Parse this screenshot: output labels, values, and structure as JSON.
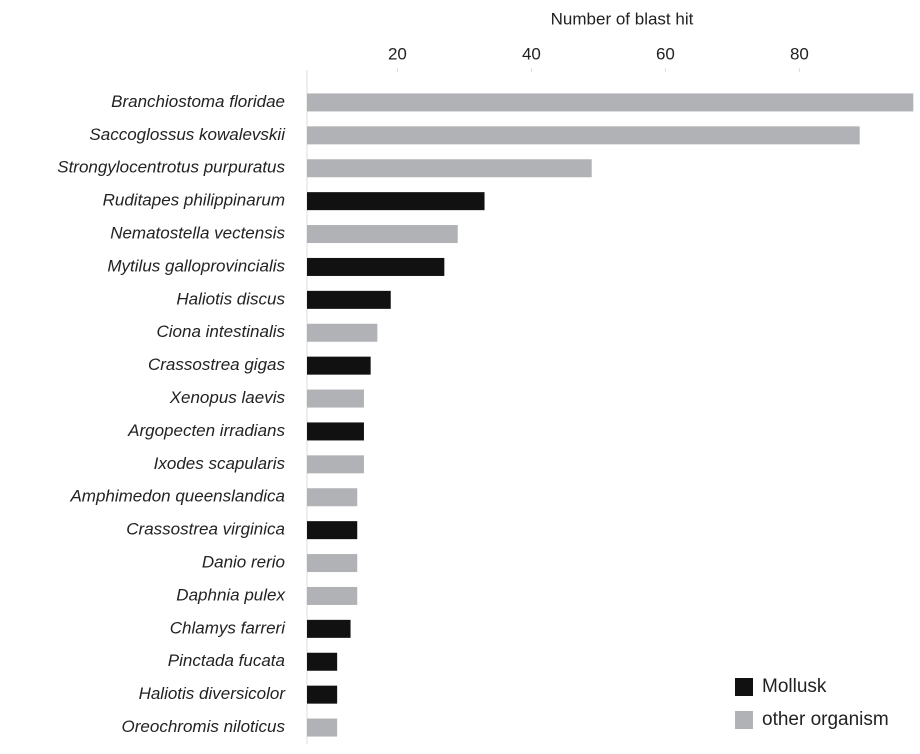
{
  "chart_data": {
    "type": "hbar",
    "title": "Number of blast hit",
    "categories": [
      "Branchiostoma floridae",
      "Saccoglossus kowalevskii",
      "Strongylocentrotus purpuratus",
      "Ruditapes philippinarum",
      "Nematostella vectensis",
      "Mytilus galloprovincialis",
      "Haliotis discus",
      "Ciona intestinalis",
      "Crassostrea gigas",
      "Xenopus laevis",
      "Argopecten irradians",
      "Ixodes scapularis",
      "Amphimedon queenslandica",
      "Crassostrea virginica",
      "Danio rerio",
      "Daphnia pulex",
      "Chlamys farreri",
      "Pinctada fucata",
      "Haliotis diversicolor",
      "Oreochromis niloticus"
    ],
    "series": [
      {
        "name": "Mollusk",
        "color": "#111111",
        "values": [
          null,
          null,
          null,
          33,
          null,
          27,
          19,
          null,
          16,
          null,
          15,
          null,
          null,
          14,
          null,
          null,
          13,
          11,
          11,
          null
        ]
      },
      {
        "name": "other organism",
        "color": "#b1b2b5",
        "values": [
          97,
          89,
          49,
          null,
          29,
          null,
          null,
          17,
          null,
          15,
          null,
          15,
          14,
          null,
          14,
          14,
          null,
          null,
          null,
          11
        ]
      }
    ],
    "xlim": [
      6.5,
      98
    ],
    "xticks": [
      20,
      40,
      60,
      80
    ],
    "grid": false,
    "legend": "bottom-right"
  }
}
